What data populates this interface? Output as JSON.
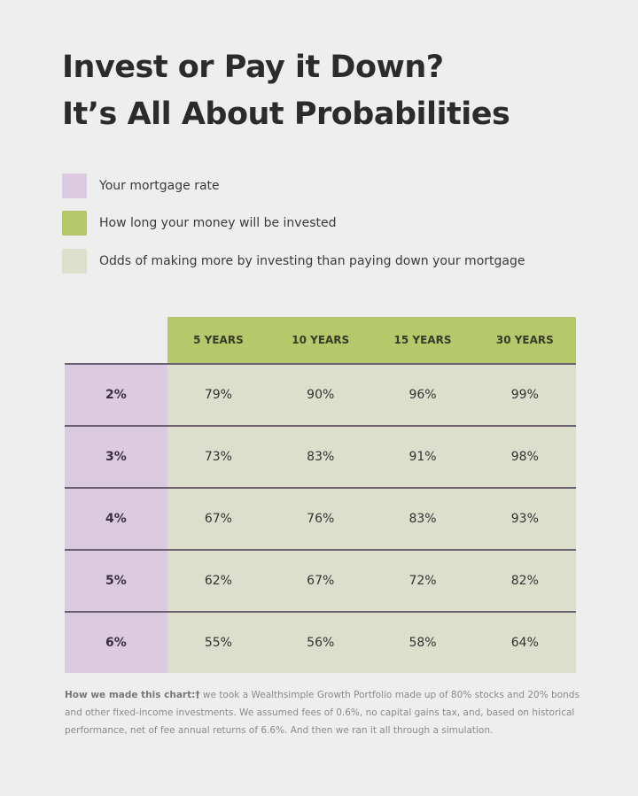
{
  "title_line1": "Invest or Pay it Down?",
  "title_line2": "It’s All About Probabilities",
  "legend": [
    {
      "label": "Your mortgage rate",
      "color": "#dccbe0"
    },
    {
      "label": "How long your money will be invested",
      "color": "#b5c96a"
    },
    {
      "label": "Odds of making more by investing than paying down your mortgage",
      "color": "#dcdfcc"
    }
  ],
  "chart_data": {
    "type": "table",
    "columns": [
      "5 YEARS",
      "10 YEARS",
      "15 YEARS",
      "30 YEARS"
    ],
    "rows": [
      {
        "rate": "2%",
        "values": [
          "79%",
          "90%",
          "96%",
          "99%"
        ]
      },
      {
        "rate": "3%",
        "values": [
          "73%",
          "83%",
          "91%",
          "98%"
        ]
      },
      {
        "rate": "4%",
        "values": [
          "67%",
          "76%",
          "83%",
          "93%"
        ]
      },
      {
        "rate": "5%",
        "values": [
          "62%",
          "67%",
          "72%",
          "82%"
        ]
      },
      {
        "rate": "6%",
        "values": [
          "55%",
          "56%",
          "58%",
          "64%"
        ]
      }
    ]
  },
  "footnote": {
    "label": "How we made this chart:†",
    "text": " we took a Wealthsimple Growth Portfolio made up of 80% stocks and 20% bonds and other fixed-income investments. We assumed fees of 0.6%, no capital gains tax, and, based on historical performance, net of fee annual returns of 6.6%. And then we ran it all through a simulation."
  }
}
